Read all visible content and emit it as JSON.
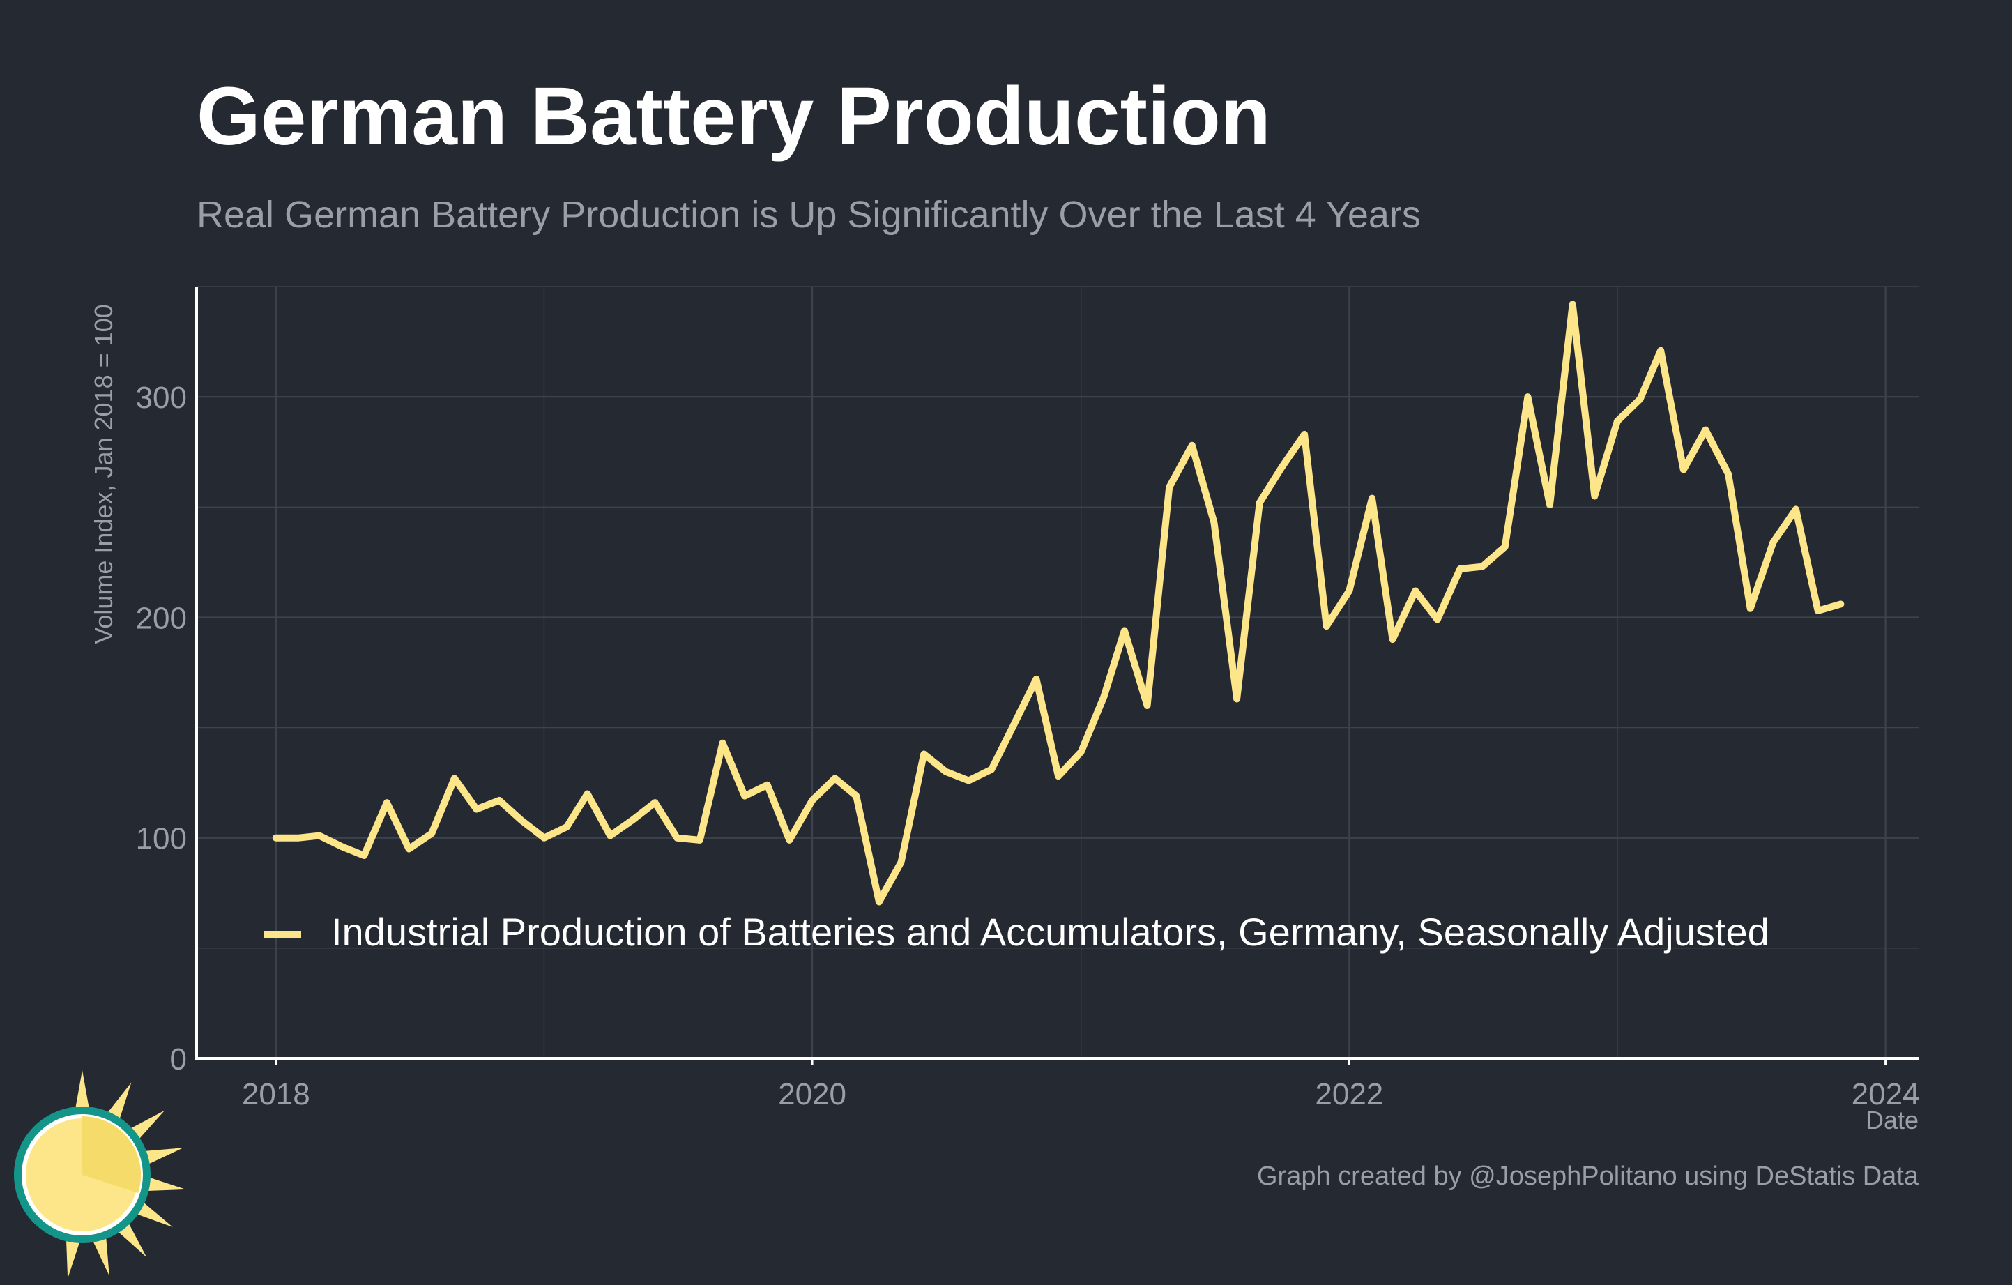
{
  "title": "German Battery Production",
  "subtitle": "Real German Battery Production is Up Significantly Over the Last 4 Years",
  "caption": "Graph created by @JosephPolitano using DeStatis Data",
  "colors": {
    "background": "#252932",
    "line": "#fde68a",
    "grid": "#3d424c",
    "axis_text": "#9a9ea6",
    "logo_sun": "#fde68a",
    "logo_ring": "#14958a"
  },
  "chart_data": {
    "type": "line",
    "xlabel": "Date",
    "ylabel": "Volume Index, Jan 2018 = 100",
    "xlim": [
      "2017-09-15",
      "2024-02-15"
    ],
    "ylim": [
      0,
      350
    ],
    "x_ticks": [
      "2018",
      "2020",
      "2022",
      "2024"
    ],
    "y_ticks": [
      "0",
      "100",
      "200",
      "300"
    ],
    "grid": true,
    "legend_position": "bottom-left",
    "series": [
      {
        "name": "Industrial Production of Batteries and Accumulators, Germany, Seasonally Adjusted",
        "x": [
          "2018-01",
          "2018-02",
          "2018-03",
          "2018-04",
          "2018-05",
          "2018-06",
          "2018-07",
          "2018-08",
          "2018-09",
          "2018-10",
          "2018-11",
          "2018-12",
          "2019-01",
          "2019-02",
          "2019-03",
          "2019-04",
          "2019-05",
          "2019-06",
          "2019-07",
          "2019-08",
          "2019-09",
          "2019-10",
          "2019-11",
          "2019-12",
          "2020-01",
          "2020-02",
          "2020-03",
          "2020-04",
          "2020-05",
          "2020-06",
          "2020-07",
          "2020-08",
          "2020-09",
          "2020-10",
          "2020-11",
          "2020-12",
          "2021-01",
          "2021-02",
          "2021-03",
          "2021-04",
          "2021-05",
          "2021-06",
          "2021-07",
          "2021-08",
          "2021-09",
          "2021-10",
          "2021-11",
          "2021-12",
          "2022-01",
          "2022-02",
          "2022-03",
          "2022-04",
          "2022-05",
          "2022-06",
          "2022-07",
          "2022-08",
          "2022-09",
          "2022-10",
          "2022-11",
          "2022-12",
          "2023-01",
          "2023-02",
          "2023-03",
          "2023-04",
          "2023-05",
          "2023-06",
          "2023-07",
          "2023-08",
          "2023-09",
          "2023-10",
          "2023-11"
        ],
        "values": [
          100,
          100,
          101,
          96,
          92,
          116,
          95,
          102,
          127,
          113,
          117,
          108,
          100,
          105,
          120,
          101,
          108,
          116,
          100,
          99,
          143,
          119,
          124,
          99,
          117,
          127,
          119,
          71,
          89,
          138,
          130,
          126,
          131,
          151,
          172,
          128,
          139,
          164,
          194,
          160,
          259,
          278,
          243,
          163,
          252,
          268,
          283,
          196,
          212,
          254,
          190,
          212,
          199,
          222,
          223,
          232,
          300,
          251,
          342,
          255,
          289,
          299,
          321,
          267,
          285,
          265,
          204,
          234,
          249,
          203,
          206
        ]
      }
    ]
  }
}
